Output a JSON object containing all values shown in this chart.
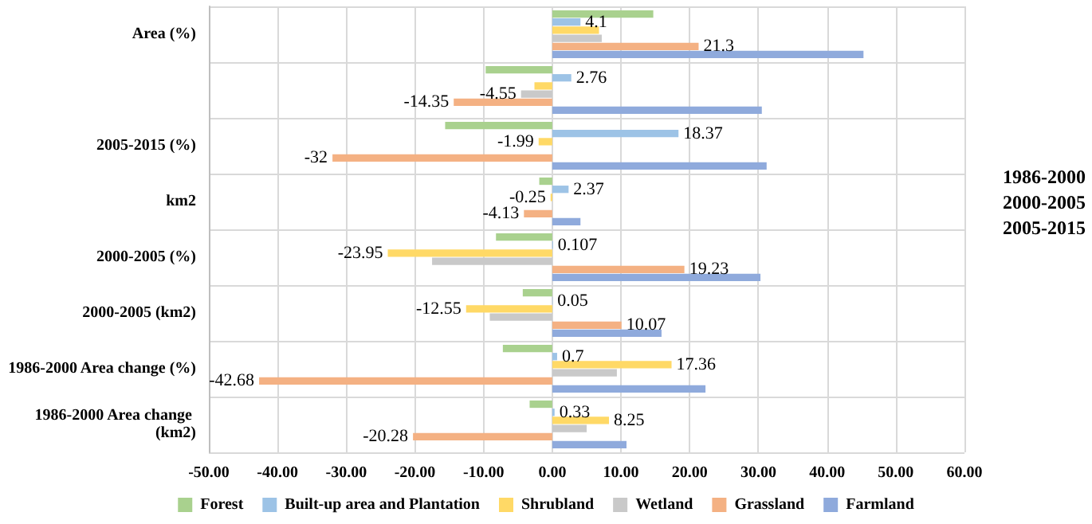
{
  "chart_data": {
    "type": "bar",
    "orientation": "horizontal",
    "categories": [
      "Area (%)",
      null,
      "2005-2015 (%)",
      "km2",
      "2000-2005 (%)",
      "2000-2005 (km2)",
      "1986-2000 Area change (%)",
      "1986-2000 Area change (km2)"
    ],
    "series": [
      {
        "name": "Forest",
        "color": "#a9d18e",
        "values": [
          14.7,
          -9.7,
          -15.6,
          -1.9,
          -8.2,
          -4.3,
          -7.2,
          -3.3
        ],
        "value_labels": [
          null,
          null,
          null,
          null,
          null,
          null,
          null,
          null
        ]
      },
      {
        "name": "Built-up area and Plantation",
        "color": "#9dc3e6",
        "values": [
          4.1,
          2.76,
          18.37,
          2.37,
          0.107,
          0.05,
          0.7,
          0.33
        ],
        "value_labels": [
          "4.1",
          "2.76",
          "18.37",
          "2.37",
          "0.107",
          "0.05",
          "0.7",
          "0.33"
        ]
      },
      {
        "name": "Shrubland",
        "color": "#ffd966",
        "values": [
          6.8,
          -2.6,
          -1.99,
          -0.25,
          -23.95,
          -12.55,
          17.36,
          8.25
        ],
        "value_labels": [
          null,
          null,
          "-1.99",
          "-0.25",
          "-23.95",
          "-12.55",
          "17.36",
          "8.25"
        ]
      },
      {
        "name": "Wetland",
        "color": "#c9c9c9",
        "values": [
          7.2,
          -4.55,
          null,
          null,
          -17.5,
          -9.1,
          9.4,
          5
        ],
        "value_labels": [
          null,
          "-4.55",
          null,
          null,
          null,
          null,
          null,
          null
        ]
      },
      {
        "name": "Grassland",
        "color": "#f4b183",
        "values": [
          21.3,
          -14.35,
          -32,
          -4.13,
          19.23,
          10.07,
          -42.68,
          -20.28
        ],
        "value_labels": [
          "21.3",
          "-14.35",
          "-32",
          "-4.13",
          "19.23",
          "10.07",
          "-42.68",
          "-20.28"
        ]
      },
      {
        "name": "Farmland",
        "color": "#8faadc",
        "values": [
          45.3,
          30.5,
          31.2,
          4.1,
          30.3,
          15.9,
          22.3,
          10.8
        ],
        "value_labels": [
          null,
          null,
          null,
          null,
          null,
          null,
          null,
          null
        ]
      }
    ],
    "xlim": [
      -50,
      60
    ],
    "xticks": [
      {
        "value": -50,
        "label": "-50.00"
      },
      {
        "value": -40,
        "label": "-40.00"
      },
      {
        "value": -30,
        "label": "-30.00"
      },
      {
        "value": -20,
        "label": "-20.00"
      },
      {
        "value": -10,
        "label": "-10.00"
      },
      {
        "value": 0,
        "label": "0.00"
      },
      {
        "value": 10,
        "label": "10.00"
      },
      {
        "value": 20,
        "label": "20.00"
      },
      {
        "value": 30,
        "label": "30.00"
      },
      {
        "value": 40,
        "label": "40.00"
      },
      {
        "value": 50,
        "label": "50.00"
      },
      {
        "value": 60,
        "label": "60.00"
      }
    ],
    "annotations": [
      "1986-2000",
      "2000-2005",
      "2005-2015"
    ],
    "grid": true,
    "legend": "bottom"
  }
}
